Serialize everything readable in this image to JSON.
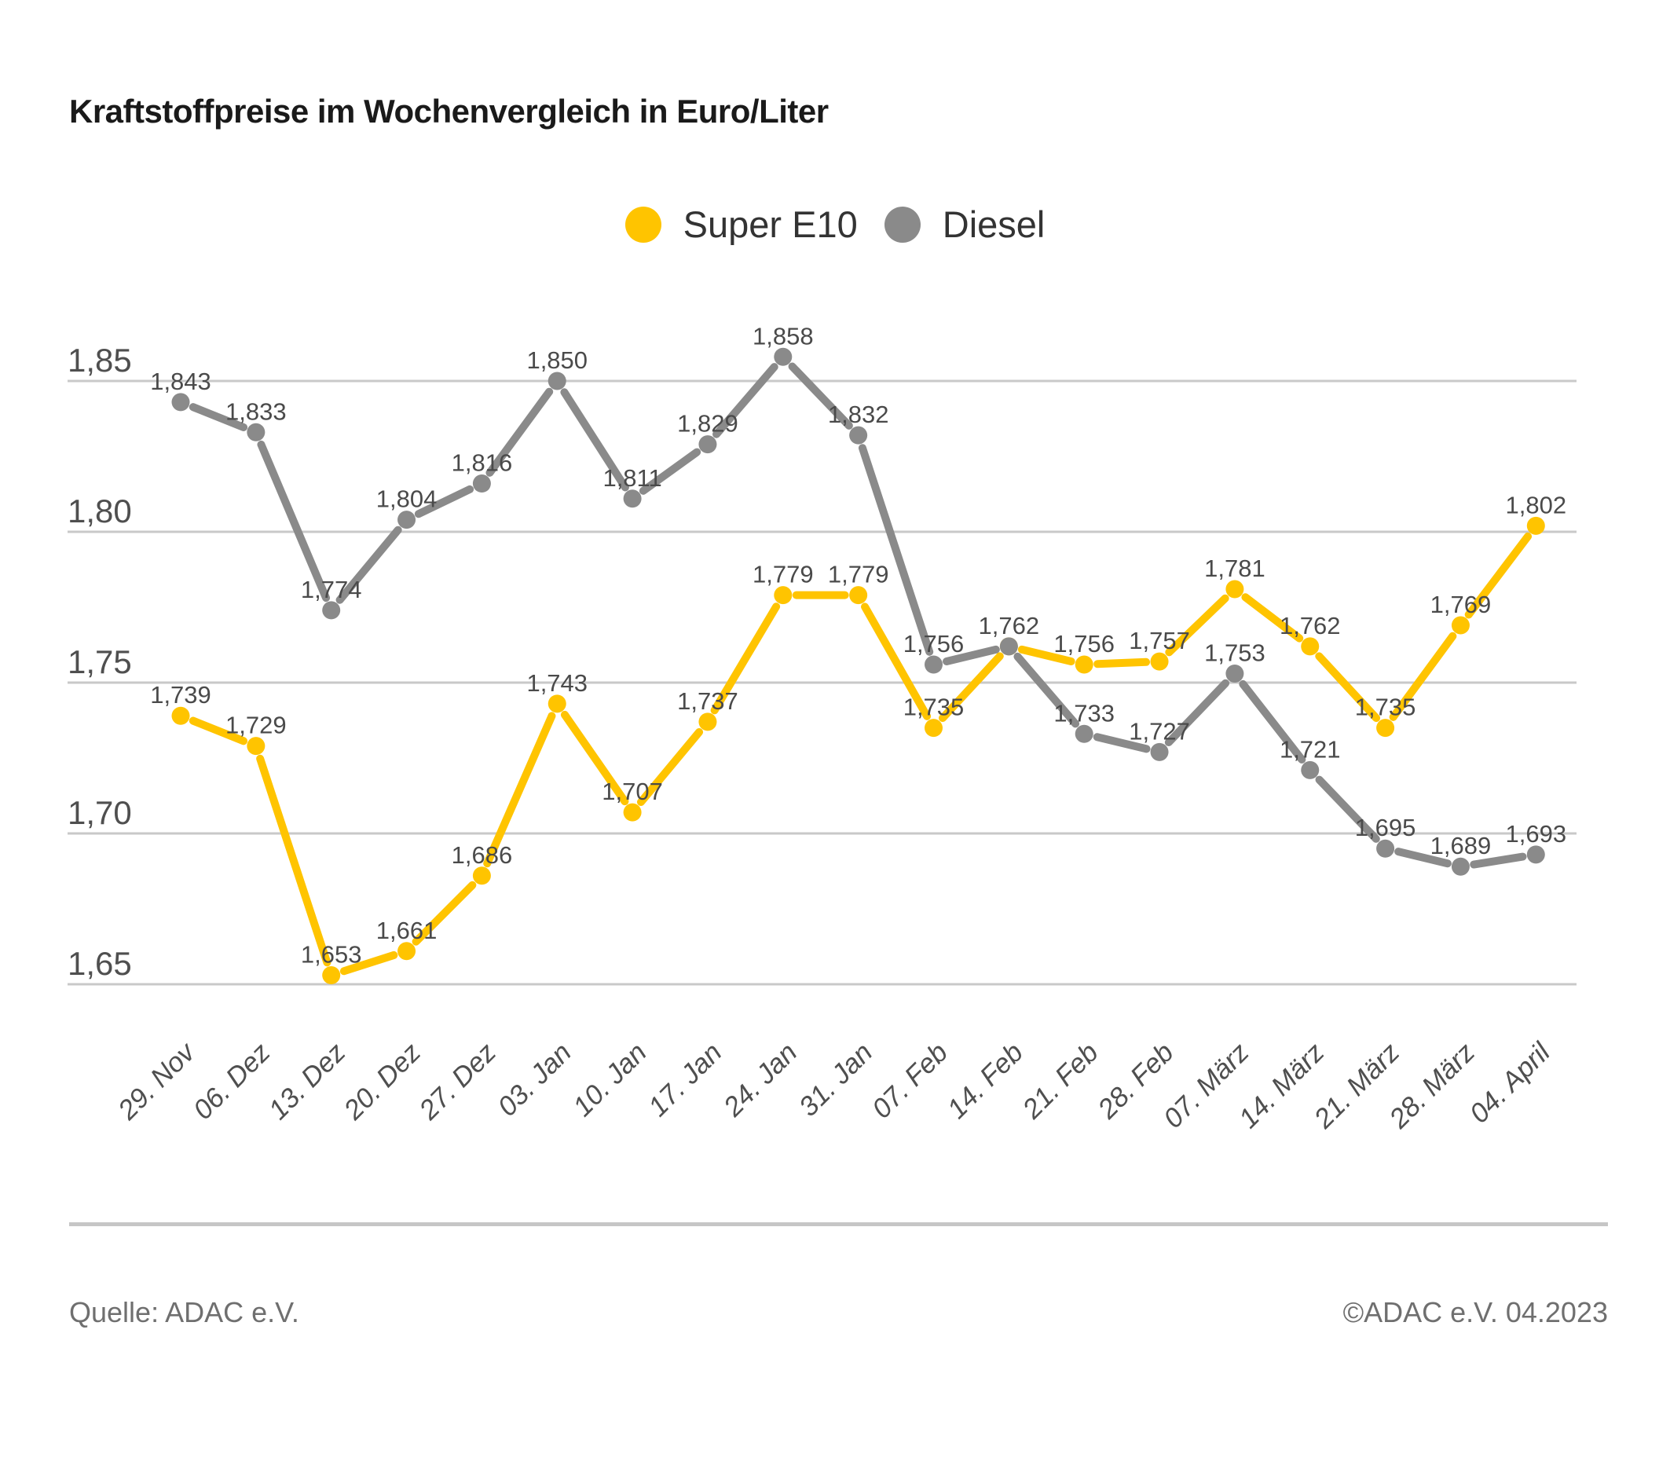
{
  "title": "Kraftstoffpreise im Wochenvergleich in Euro/Liter",
  "legend": {
    "items": [
      {
        "label": "Super E10",
        "color": "#FFC400"
      },
      {
        "label": "Diesel",
        "color": "#8A8A8A"
      }
    ]
  },
  "footer": {
    "source": "Quelle: ADAC e.V.",
    "copyright": "©ADAC e.V. 04.2023"
  },
  "colors": {
    "background": "#FFFFFF",
    "title_text": "#1A1A1A",
    "legend_text": "#333333",
    "grid": "#C9C9C9",
    "axis_text": "#4F4F4F",
    "data_label_text": "#4A4A4A",
    "divider": "#C6C6C6",
    "footer_text": "#6F6F6F",
    "super_e10": "#FFC400",
    "diesel": "#8A8A8A"
  },
  "chart_data": {
    "type": "line",
    "title": "Kraftstoffpreise im Wochenvergleich in Euro/Liter",
    "unit": "Euro/Liter",
    "grid": true,
    "legend_position": "top-center",
    "categories": [
      "29. Nov",
      "06. Dez",
      "13. Dez",
      "20. Dez",
      "27. Dez",
      "03. Jan",
      "10. Jan",
      "17. Jan",
      "24. Jan",
      "31. Jan",
      "07. Feb",
      "14. Feb",
      "21. Feb",
      "28. Feb",
      "07. März",
      "14. März",
      "21. März",
      "28. März",
      "04. April"
    ],
    "series": [
      {
        "name": "Super E10",
        "color": "#FFC400",
        "values": [
          1.739,
          1.729,
          1.653,
          1.661,
          1.686,
          1.743,
          1.707,
          1.737,
          1.779,
          1.779,
          1.735,
          1.762,
          1.756,
          1.757,
          1.781,
          1.762,
          1.735,
          1.769,
          1.802
        ],
        "point_labels": [
          "1,739",
          "1,729",
          "1,653",
          "1,661",
          "1,686",
          "1,743",
          "1,707",
          "1,737",
          "1,779",
          "1,779",
          "1,735",
          null,
          "1,756",
          "1,757",
          "1,781",
          "1,762",
          "1,735",
          "1,769",
          "1,802"
        ]
      },
      {
        "name": "Diesel",
        "color": "#8A8A8A",
        "values": [
          1.843,
          1.833,
          1.774,
          1.804,
          1.816,
          1.85,
          1.811,
          1.829,
          1.858,
          1.832,
          1.756,
          1.762,
          1.733,
          1.727,
          1.753,
          1.721,
          1.695,
          1.689,
          1.693
        ],
        "point_labels": [
          "1,843",
          "1,833",
          "1,774",
          "1,804",
          "1,816",
          "1,850",
          "1,811",
          "1,829",
          "1,858",
          "1,832",
          "1,756",
          "1,762",
          "1,733",
          "1,727",
          "1,753",
          "1,721",
          "1,695",
          "1,689",
          "1,693"
        ]
      }
    ],
    "yticks": [
      1.85,
      1.8,
      1.75,
      1.7,
      1.65
    ],
    "ytick_labels": [
      "1,85",
      "1,80",
      "1,75",
      "1,70",
      "1,65"
    ],
    "ylim": [
      1.64,
      1.87
    ]
  }
}
